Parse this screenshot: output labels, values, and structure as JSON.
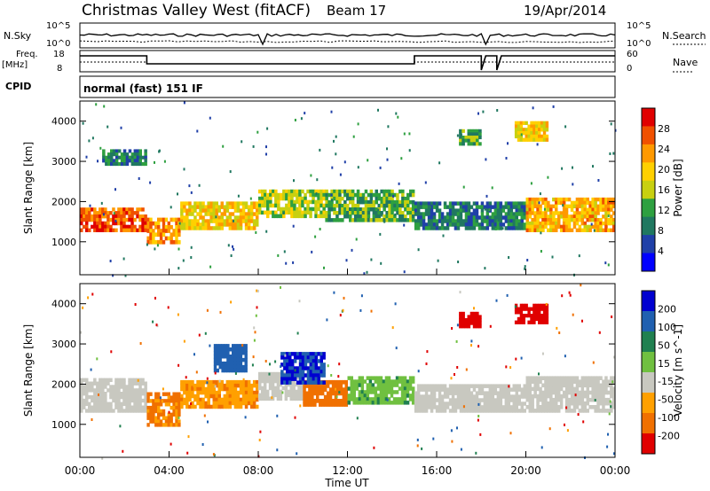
{
  "header": {
    "station": "Christmas Valley West (fitACF)",
    "beam": "Beam 17",
    "date": "19/Apr/2014"
  },
  "status_panel": {
    "nsky_label": "N.Sky",
    "nsearch_label": "N.Search",
    "nsky_ticks": [
      "10^5",
      "10^0"
    ],
    "nsearch_ticks": [
      "10^5",
      "10^0"
    ],
    "freq_label": "Freq.",
    "freq_unit": "[MHz]",
    "freq_ticks": [
      "18",
      "8"
    ],
    "nave_label": "Nave",
    "nave_ticks": [
      "60",
      "0"
    ],
    "cpid_label": "CPID",
    "cpid_value": "normal (fast) 151 IF"
  },
  "chart_data": [
    {
      "type": "heatmap",
      "name": "power",
      "ylabel": "Slant Range [km]",
      "yticks": [
        1000,
        2000,
        3000,
        4000
      ],
      "ylim": [
        180,
        4500
      ],
      "xlim_hours": [
        0,
        24
      ],
      "colorbar_label": "Power [dB]",
      "colorbar_ticks": [
        "28",
        "24",
        "20",
        "16",
        "12",
        "8",
        "4"
      ],
      "colorbar_colors": [
        "#e00000",
        "#f05000",
        "#ff9900",
        "#ffd000",
        "#c8d010",
        "#2ea040",
        "#207860",
        "#2040a8",
        "#0000ff"
      ],
      "regions": [
        {
          "t0": 0.0,
          "t1": 3.0,
          "r0": 1250,
          "r1": 1850,
          "level": 26
        },
        {
          "t0": 3.0,
          "t1": 4.5,
          "r0": 950,
          "r1": 1600,
          "level": 22
        },
        {
          "t0": 4.5,
          "t1": 8.0,
          "r0": 1300,
          "r1": 2000,
          "level": 18
        },
        {
          "t0": 8.0,
          "t1": 11.0,
          "r0": 1600,
          "r1": 2300,
          "level": 14
        },
        {
          "t0": 11.0,
          "t1": 15.0,
          "r0": 1500,
          "r1": 2300,
          "level": 10
        },
        {
          "t0": 15.0,
          "t1": 20.0,
          "r0": 1300,
          "r1": 2000,
          "level": 6
        },
        {
          "t0": 20.0,
          "t1": 24.0,
          "r0": 1250,
          "r1": 2100,
          "level": 20
        },
        {
          "t0": 1.0,
          "t1": 3.0,
          "r0": 2900,
          "r1": 3300,
          "level": 6
        },
        {
          "t0": 19.5,
          "t1": 21.0,
          "r0": 3500,
          "r1": 4000,
          "level": 18
        },
        {
          "t0": 17.0,
          "t1": 18.0,
          "r0": 3400,
          "r1": 3800,
          "level": 10
        }
      ]
    },
    {
      "type": "heatmap",
      "name": "velocity",
      "ylabel": "Slant Range [km]",
      "yticks": [
        1000,
        2000,
        3000,
        4000
      ],
      "ylim": [
        180,
        4500
      ],
      "xlim_hours": [
        0,
        24
      ],
      "xticks": [
        "00:00",
        "04:00",
        "08:00",
        "12:00",
        "16:00",
        "20:00",
        "00:00"
      ],
      "xlabel": "Time UT",
      "colorbar_label": "Velocity [m s^-1]",
      "colorbar_ticks": [
        "200",
        "100",
        "50",
        "15",
        "-15",
        "-50",
        "-100",
        "-200"
      ],
      "colorbar_colors": [
        "#0000d0",
        "#2060b0",
        "#208050",
        "#70c040",
        "#c8c8c0",
        "#ffa000",
        "#f07000",
        "#e00000"
      ],
      "regions": [
        {
          "t0": 0.0,
          "t1": 3.0,
          "r0": 1300,
          "r1": 2150,
          "level": 0
        },
        {
          "t0": 3.0,
          "t1": 4.5,
          "r0": 950,
          "r1": 1800,
          "level": -60
        },
        {
          "t0": 4.5,
          "t1": 8.0,
          "r0": 1400,
          "r1": 2100,
          "level": -40
        },
        {
          "t0": 8.0,
          "t1": 10.0,
          "r0": 1600,
          "r1": 2300,
          "level": 0
        },
        {
          "t0": 10.0,
          "t1": 12.0,
          "r0": 1450,
          "r1": 2100,
          "level": -70
        },
        {
          "t0": 12.0,
          "t1": 15.0,
          "r0": 1500,
          "r1": 2200,
          "level": 40
        },
        {
          "t0": 15.0,
          "t1": 20.0,
          "r0": 1300,
          "r1": 2000,
          "level": 0
        },
        {
          "t0": 20.0,
          "t1": 24.0,
          "r0": 1300,
          "r1": 2200,
          "level": 0
        },
        {
          "t0": 19.5,
          "t1": 21.0,
          "r0": 3500,
          "r1": 4000,
          "level": -220
        },
        {
          "t0": 17.0,
          "t1": 18.0,
          "r0": 3400,
          "r1": 3800,
          "level": -220
        },
        {
          "t0": 9.0,
          "t1": 11.0,
          "r0": 2000,
          "r1": 2800,
          "level": 200
        },
        {
          "t0": 6.0,
          "t1": 7.5,
          "r0": 2300,
          "r1": 3000,
          "level": 150
        }
      ]
    }
  ]
}
